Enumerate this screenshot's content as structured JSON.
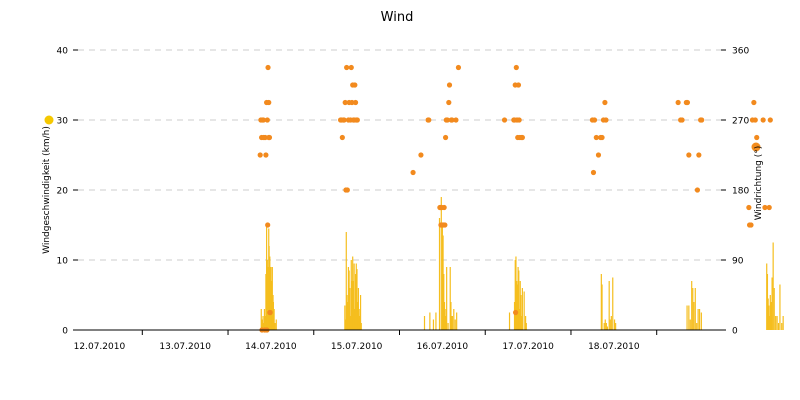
{
  "chart_data": {
    "type": "bar",
    "title": "Wind",
    "ylabel": "Windgeschwindigkeit (km/h)",
    "y2label": "Windrichtung (°)",
    "ylim": [
      0,
      40
    ],
    "y2lim": [
      0,
      360
    ],
    "yticks": [
      0,
      10,
      20,
      30,
      40
    ],
    "y2ticks": [
      0,
      90,
      180,
      270,
      360
    ],
    "xlim": [
      "11.07.2010 18:00",
      "19.07.2010 06:00"
    ],
    "x_ticks": [
      "12.07.2010",
      "13.07.2010",
      "14.07.2010",
      "15.07.2010",
      "16.07.2010",
      "17.07.2010",
      "18.07.2010"
    ],
    "grid": "horizontal dashed",
    "colors": {
      "speed": "#F5BE1E",
      "direction": "#F28A1E",
      "speed_legend": "#F5C800",
      "direction_legend": "#F28C1E"
    },
    "series": [
      {
        "kind": "bar",
        "axis": "left",
        "x_hours": [
          51.3,
          51.5,
          51.8,
          52.0,
          52.2,
          52.4,
          52.6,
          52.8,
          53.0,
          53.2,
          53.4,
          53.5,
          53.6,
          53.7,
          53.8,
          53.9,
          54.0,
          54.1,
          54.2,
          54.3,
          54.4,
          54.5,
          54.6,
          54.7,
          54.8,
          54.9,
          55.0,
          55.2,
          55.5,
          74.7,
          74.9,
          75.1,
          75.3,
          75.5,
          75.7,
          75.9,
          76.1,
          76.3,
          76.5,
          76.7,
          76.9,
          77.1,
          77.3,
          77.5,
          77.7,
          77.9,
          78.1,
          78.3,
          78.5,
          78.7,
          78.9,
          79.1,
          79.3,
          97.0,
          98.5,
          99.5,
          100.2,
          101.2,
          101.7,
          102.0,
          102.2,
          102.4,
          102.6,
          102.8,
          103.0,
          103.2,
          103.6,
          104.2,
          104.4,
          104.6,
          104.8,
          105.2,
          105.6,
          106.0,
          120.8,
          122.2,
          122.4,
          122.6,
          122.8,
          123.0,
          123.2,
          123.4,
          123.6,
          123.8,
          124.0,
          124.2,
          124.4,
          124.9,
          125.3,
          125.5,
          146.5,
          146.7,
          147.3,
          147.6,
          147.9,
          148.2,
          148.7,
          149.0,
          149.3,
          149.7,
          150.2,
          150.5,
          170.5,
          171.0,
          171.4,
          171.8,
          172.1,
          172.4,
          172.8,
          173.2,
          173.6,
          174.0,
          174.5,
          192.8,
          193.0,
          193.2,
          193.4,
          193.6,
          193.8,
          194.0,
          194.3,
          194.6,
          194.9,
          195.3,
          195.7,
          196.1,
          196.5,
          197.0,
          197.4
        ],
        "values": [
          3,
          1.5,
          2,
          1,
          3,
          2,
          8,
          15.3,
          10,
          9,
          14.5,
          12,
          6,
          10.5,
          9,
          4,
          9,
          4,
          7,
          5.5,
          9,
          3,
          5,
          4,
          1,
          3,
          1,
          1,
          1.5,
          3.5,
          1.5,
          14,
          5,
          4,
          9,
          8.5,
          6,
          2,
          10,
          7,
          10.5,
          7,
          9.5,
          3,
          8,
          9.5,
          8.7,
          4,
          6,
          3,
          2,
          5,
          1,
          2,
          2.5,
          1.5,
          2.5,
          16,
          19,
          15,
          13.5,
          8,
          4,
          2,
          3,
          9,
          1,
          9,
          4,
          2,
          2,
          3,
          1.5,
          2.5,
          2.5,
          4,
          10,
          10.5,
          7,
          6.5,
          9,
          8.5,
          3,
          7,
          5,
          2,
          6,
          5.5,
          2,
          1,
          8,
          6.5,
          1,
          1.5,
          1,
          0.5,
          7,
          1.5,
          2,
          7.5,
          1.5,
          1,
          3.5,
          3.5,
          1.5,
          7,
          6,
          4,
          6,
          1,
          3,
          3,
          2.5,
          9.5,
          8,
          4.5,
          3.5,
          2,
          5,
          4,
          7.5,
          12.5,
          6,
          2,
          2,
          1,
          6.5,
          1,
          2
        ]
      },
      {
        "kind": "scatter",
        "axis": "right",
        "points": [
          [
            51.0,
            225
          ],
          [
            51.2,
            270
          ],
          [
            51.4,
            247.5
          ],
          [
            51.5,
            0
          ],
          [
            51.6,
            270
          ],
          [
            51.9,
            270
          ],
          [
            52.0,
            247.5
          ],
          [
            52.3,
            0
          ],
          [
            52.4,
            247.5
          ],
          [
            52.6,
            225
          ],
          [
            52.8,
            292.5
          ],
          [
            52.9,
            0
          ],
          [
            53.0,
            270
          ],
          [
            53.1,
            135
          ],
          [
            53.2,
            337.5
          ],
          [
            53.4,
            292.5
          ],
          [
            53.4,
            247.5
          ],
          [
            53.6,
            247.5
          ],
          [
            53.7,
            22.5
          ],
          [
            53.8,
            22.5
          ],
          [
            73.5,
            270
          ],
          [
            73.8,
            270
          ],
          [
            74.0,
            247.5
          ],
          [
            74.3,
            270
          ],
          [
            74.5,
            270
          ],
          [
            74.8,
            292.5
          ],
          [
            75.0,
            180
          ],
          [
            75.2,
            337.5
          ],
          [
            75.4,
            180
          ],
          [
            75.7,
            270
          ],
          [
            75.9,
            292.5
          ],
          [
            76.3,
            270
          ],
          [
            76.5,
            337.5
          ],
          [
            76.7,
            292.5
          ],
          [
            76.9,
            315
          ],
          [
            77.1,
            270
          ],
          [
            77.3,
            270
          ],
          [
            77.5,
            315
          ],
          [
            77.7,
            292.5
          ],
          [
            77.9,
            270
          ],
          [
            78.2,
            270
          ],
          [
            93.8,
            202.5
          ],
          [
            96.0,
            225
          ],
          [
            98.0,
            270
          ],
          [
            98.2,
            270
          ],
          [
            101.3,
            157.5
          ],
          [
            101.5,
            157.5
          ],
          [
            101.6,
            135
          ],
          [
            101.8,
            157.5
          ],
          [
            102.0,
            135
          ],
          [
            102.3,
            135
          ],
          [
            102.5,
            157.5
          ],
          [
            102.7,
            135
          ],
          [
            102.9,
            247.5
          ],
          [
            103.1,
            270
          ],
          [
            103.4,
            270
          ],
          [
            103.8,
            292.5
          ],
          [
            104.0,
            315
          ],
          [
            104.5,
            270
          ],
          [
            104.7,
            270
          ],
          [
            105.8,
            270
          ],
          [
            106.5,
            337.5
          ],
          [
            119.4,
            270
          ],
          [
            122.0,
            270
          ],
          [
            122.2,
            270
          ],
          [
            122.4,
            315
          ],
          [
            122.5,
            22.5
          ],
          [
            122.7,
            337.5
          ],
          [
            122.9,
            270
          ],
          [
            123.1,
            247.5
          ],
          [
            123.3,
            315
          ],
          [
            123.5,
            270
          ],
          [
            123.7,
            247.5
          ],
          [
            124.2,
            247.5
          ],
          [
            124.4,
            247.5
          ],
          [
            144.0,
            270
          ],
          [
            144.3,
            202.5
          ],
          [
            144.6,
            270
          ],
          [
            145.1,
            247.5
          ],
          [
            145.7,
            225
          ],
          [
            146.3,
            247.5
          ],
          [
            146.7,
            247.5
          ],
          [
            147.1,
            270
          ],
          [
            147.5,
            292.5
          ],
          [
            147.8,
            270
          ],
          [
            168.0,
            292.5
          ],
          [
            168.7,
            270
          ],
          [
            169.1,
            270
          ],
          [
            170.3,
            292.5
          ],
          [
            170.6,
            292.5
          ],
          [
            171.0,
            225
          ],
          [
            173.4,
            180
          ],
          [
            173.8,
            225
          ],
          [
            174.3,
            270
          ],
          [
            174.6,
            270
          ],
          [
            187.8,
            157.5
          ],
          [
            188.0,
            135
          ],
          [
            188.4,
            135
          ],
          [
            188.8,
            270
          ],
          [
            189.2,
            292.5
          ],
          [
            189.6,
            270
          ],
          [
            190.0,
            247.5
          ],
          [
            191.8,
            270
          ],
          [
            192.3,
            157.5
          ],
          [
            193.5,
            157.5
          ],
          [
            193.8,
            270
          ]
        ]
      }
    ]
  }
}
